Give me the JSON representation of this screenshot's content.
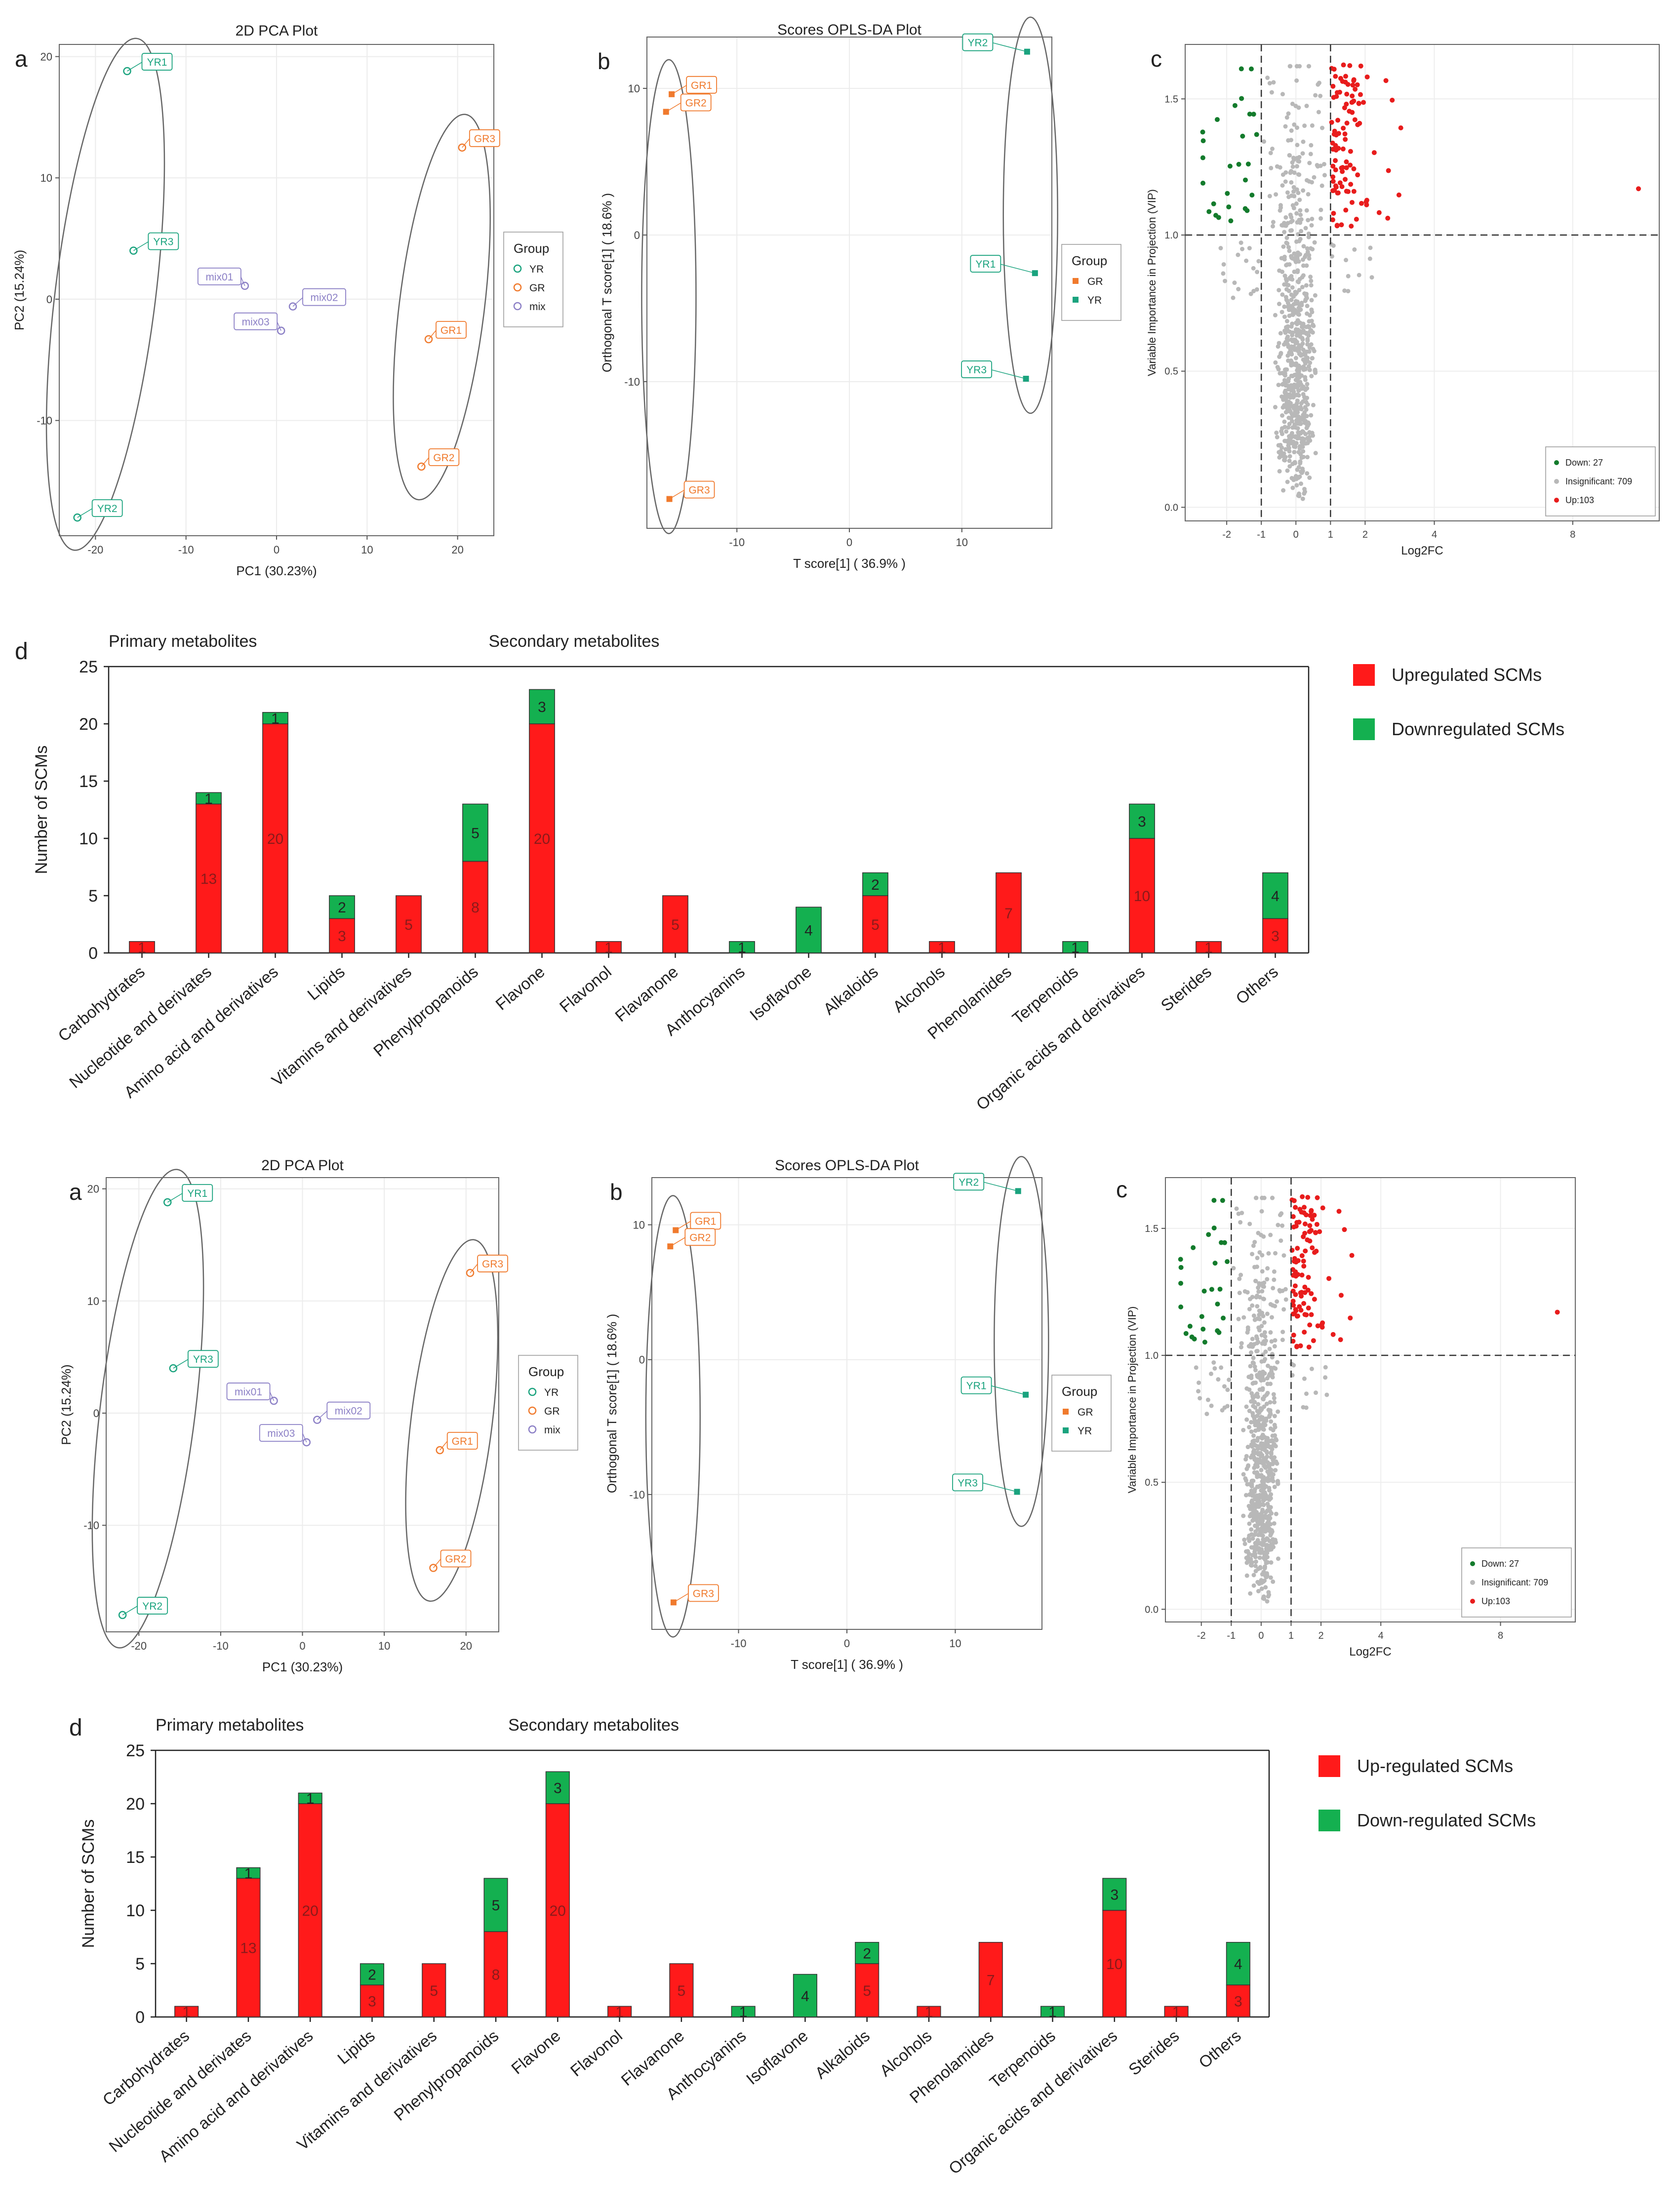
{
  "colors": {
    "yr": "#1aa37e",
    "gr": "#f07a2d",
    "mix": "#8c80c6",
    "down": "#137b2c",
    "insig": "#b8b8b8",
    "up": "#e81c1c",
    "bar_up": "#ff1a1a",
    "bar_down": "#14b050",
    "ellipse": "#666666"
  },
  "chart_data": [
    {
      "id": "pca-top",
      "panel": "a",
      "type": "scatter",
      "title": "2D PCA Plot",
      "xlabel": "PC1 (30.23%)",
      "ylabel": "PC2 (15.24%)",
      "xlim": [
        -24,
        24
      ],
      "ylim": [
        -19.5,
        21
      ],
      "xticks": [
        -20,
        -10,
        0,
        10,
        20
      ],
      "yticks": [
        -10,
        0,
        10,
        20
      ],
      "legend": {
        "title": "Group",
        "items": [
          "YR",
          "GR",
          "mix"
        ]
      },
      "points": [
        {
          "label": "YR1",
          "group": "YR",
          "x": -16.5,
          "y": 18.8
        },
        {
          "label": "YR3",
          "group": "YR",
          "x": -15.8,
          "y": 4.0
        },
        {
          "label": "YR2",
          "group": "YR",
          "x": -22.0,
          "y": -18.0
        },
        {
          "label": "GR3",
          "group": "GR",
          "x": 20.5,
          "y": 12.5
        },
        {
          "label": "GR1",
          "group": "GR",
          "x": 16.8,
          "y": -3.3
        },
        {
          "label": "GR2",
          "group": "GR",
          "x": 16.0,
          "y": -13.8
        },
        {
          "label": "mix01",
          "group": "mix",
          "x": -3.5,
          "y": 1.1
        },
        {
          "label": "mix02",
          "group": "mix",
          "x": 1.8,
          "y": -0.6
        },
        {
          "label": "mix03",
          "group": "mix",
          "x": 0.5,
          "y": -2.6
        }
      ]
    },
    {
      "id": "opls-top",
      "panel": "b",
      "type": "scatter",
      "title": "Scores OPLS-DA Plot",
      "xlabel": "T score[1] ( 36.9% )",
      "ylabel": "Orthogonal T score[1] ( 18.6% )",
      "xlim": [
        -18,
        18
      ],
      "ylim": [
        -20,
        13.5
      ],
      "xticks": [
        -10,
        0,
        10
      ],
      "yticks": [
        -10,
        0,
        10
      ],
      "legend": {
        "title": "Group",
        "items": [
          "GR",
          "YR"
        ]
      },
      "points": [
        {
          "label": "GR1",
          "group": "GR",
          "x": -15.8,
          "y": 9.6
        },
        {
          "label": "GR2",
          "group": "GR",
          "x": -16.3,
          "y": 8.4
        },
        {
          "label": "GR3",
          "group": "GR",
          "x": -16.0,
          "y": -18.0
        },
        {
          "label": "YR2",
          "group": "YR",
          "x": 15.8,
          "y": 12.5
        },
        {
          "label": "YR1",
          "group": "YR",
          "x": 16.5,
          "y": -2.6
        },
        {
          "label": "YR3",
          "group": "YR",
          "x": 15.7,
          "y": -9.8
        }
      ]
    },
    {
      "id": "volcano-top",
      "panel": "c",
      "type": "scatter",
      "title": "",
      "xlabel": "Log2FC",
      "ylabel": "Variable Importance in Projection (VIP)",
      "xlim": [
        -3.2,
        10.5
      ],
      "ylim": [
        -0.05,
        1.7
      ],
      "xticks": [
        -2,
        -1,
        0,
        1,
        2,
        4,
        8
      ],
      "yticks": [
        0.0,
        0.5,
        1.0,
        1.5
      ],
      "vip_threshold": 1.0,
      "fc_thresholds": [
        -1,
        1
      ],
      "legend": [
        {
          "label": "Down: 27",
          "key": "down"
        },
        {
          "label": "Insignificant: 709",
          "key": "insig"
        },
        {
          "label": "Up:103",
          "key": "up"
        }
      ],
      "counts": {
        "down": 27,
        "insignificant": 709,
        "up": 103
      },
      "outlier_up": {
        "x": 9.9,
        "y": 1.17
      }
    },
    {
      "id": "bar-top",
      "panel": "d",
      "type": "bar",
      "stacked": true,
      "title": "",
      "ylabel": "Number of SCMs",
      "ylim": [
        0,
        25
      ],
      "yticks": [
        0,
        5,
        10,
        15,
        20,
        25
      ],
      "group_labels": {
        "primary": "Primary metabolites",
        "secondary": "Secondary metabolites"
      },
      "legend": [
        "Upregulated SCMs",
        "Downregulated SCMs"
      ],
      "categories": [
        "Carbohydrates",
        "Nucleotide and derivates",
        "Amino acid and derivatives",
        "Lipids",
        "Vitamins and derivatives",
        "Phenylpropanoids",
        "Flavone",
        "Flavonol",
        "Flavanone",
        "Anthocyanins",
        "Isoflavone",
        "Alkaloids",
        "Alcohols",
        "Phenolamides",
        "Terpenoids",
        "Organic acids and derivatives",
        "Sterides",
        "Others"
      ],
      "series": [
        {
          "name": "Upregulated SCMs",
          "values": [
            1,
            13,
            20,
            3,
            5,
            8,
            20,
            1,
            5,
            0,
            0,
            5,
            1,
            7,
            0,
            10,
            1,
            3
          ]
        },
        {
          "name": "Downregulated SCMs",
          "values": [
            0,
            1,
            1,
            2,
            0,
            5,
            3,
            0,
            0,
            1,
            4,
            2,
            0,
            0,
            1,
            3,
            0,
            4
          ]
        }
      ]
    },
    {
      "id": "pca-bottom",
      "panel": "a",
      "type": "scatter",
      "title": "2D PCA Plot",
      "xlabel": "PC1 (30.23%)",
      "ylabel": "PC2 (15.24%)",
      "xlim": [
        -24,
        24
      ],
      "ylim": [
        -19.5,
        21
      ],
      "xticks": [
        -20,
        -10,
        0,
        10,
        20
      ],
      "yticks": [
        -10,
        0,
        10,
        20
      ],
      "legend": {
        "title": "Group",
        "items": [
          "YR",
          "GR",
          "mix"
        ]
      },
      "points": [
        {
          "label": "YR1",
          "group": "YR",
          "x": -16.5,
          "y": 18.8
        },
        {
          "label": "YR3",
          "group": "YR",
          "x": -15.8,
          "y": 4.0
        },
        {
          "label": "YR2",
          "group": "YR",
          "x": -22.0,
          "y": -18.0
        },
        {
          "label": "GR3",
          "group": "GR",
          "x": 20.5,
          "y": 12.5
        },
        {
          "label": "GR1",
          "group": "GR",
          "x": 16.8,
          "y": -3.3
        },
        {
          "label": "GR2",
          "group": "GR",
          "x": 16.0,
          "y": -13.8
        },
        {
          "label": "mix01",
          "group": "mix",
          "x": -3.5,
          "y": 1.1
        },
        {
          "label": "mix02",
          "group": "mix",
          "x": 1.8,
          "y": -0.6
        },
        {
          "label": "mix03",
          "group": "mix",
          "x": 0.5,
          "y": -2.6
        }
      ]
    },
    {
      "id": "opls-bottom",
      "panel": "b",
      "type": "scatter",
      "title": "Scores OPLS-DA Plot",
      "xlabel": "T score[1] ( 36.9% )",
      "ylabel": "Orthogonal T score[1] ( 18.6% )",
      "xlim": [
        -18,
        18
      ],
      "ylim": [
        -20,
        13.5
      ],
      "xticks": [
        -10,
        0,
        10
      ],
      "yticks": [
        -10,
        0,
        10
      ],
      "legend": {
        "title": "Group",
        "items": [
          "GR",
          "YR"
        ]
      },
      "points": [
        {
          "label": "GR1",
          "group": "GR",
          "x": -15.8,
          "y": 9.6
        },
        {
          "label": "GR2",
          "group": "GR",
          "x": -16.3,
          "y": 8.4
        },
        {
          "label": "GR3",
          "group": "GR",
          "x": -16.0,
          "y": -18.0
        },
        {
          "label": "YR2",
          "group": "YR",
          "x": 15.8,
          "y": 12.5
        },
        {
          "label": "YR1",
          "group": "YR",
          "x": 16.5,
          "y": -2.6
        },
        {
          "label": "YR3",
          "group": "YR",
          "x": 15.7,
          "y": -9.8
        }
      ]
    },
    {
      "id": "volcano-bottom",
      "panel": "c",
      "type": "scatter",
      "title": "",
      "xlabel": "Log2FC",
      "ylabel": "Variable Importance in Projection (VIP)",
      "xlim": [
        -3.2,
        10.5
      ],
      "ylim": [
        -0.05,
        1.7
      ],
      "xticks": [
        -2,
        -1,
        0,
        1,
        2,
        4,
        8
      ],
      "yticks": [
        0.0,
        0.5,
        1.0,
        1.5
      ],
      "vip_threshold": 1.0,
      "fc_thresholds": [
        -1,
        1
      ],
      "legend": [
        {
          "label": "Down: 27",
          "key": "down"
        },
        {
          "label": "Insignificant: 709",
          "key": "insig"
        },
        {
          "label": "Up:103",
          "key": "up"
        }
      ],
      "counts": {
        "down": 27,
        "insignificant": 709,
        "up": 103
      },
      "outlier_up": {
        "x": 9.9,
        "y": 1.17
      }
    },
    {
      "id": "bar-bottom",
      "panel": "d",
      "type": "bar",
      "stacked": true,
      "title": "",
      "ylabel": "Number of SCMs",
      "ylim": [
        0,
        25
      ],
      "yticks": [
        0,
        5,
        10,
        15,
        20,
        25
      ],
      "group_labels": {
        "primary": "Primary metabolites",
        "secondary": "Secondary metabolites"
      },
      "legend": [
        "Up-regulated SCMs",
        "Down-regulated SCMs"
      ],
      "categories": [
        "Carbohydrates",
        "Nucleotide and derivates",
        "Amino acid and derivatives",
        "Lipids",
        "Vitamins and derivatives",
        "Phenylpropanoids",
        "Flavone",
        "Flavonol",
        "Flavanone",
        "Anthocyanins",
        "Isoflavone",
        "Alkaloids",
        "Alcohols",
        "Phenolamides",
        "Terpenoids",
        "Organic acids and derivatives",
        "Sterides",
        "Others"
      ],
      "series": [
        {
          "name": "Up-regulated SCMs",
          "values": [
            1,
            13,
            20,
            3,
            5,
            8,
            20,
            1,
            5,
            0,
            0,
            5,
            1,
            7,
            0,
            10,
            1,
            3
          ]
        },
        {
          "name": "Down-regulated SCMs",
          "values": [
            0,
            1,
            1,
            2,
            0,
            5,
            3,
            0,
            0,
            1,
            4,
            2,
            0,
            0,
            1,
            3,
            0,
            4
          ]
        }
      ]
    }
  ]
}
